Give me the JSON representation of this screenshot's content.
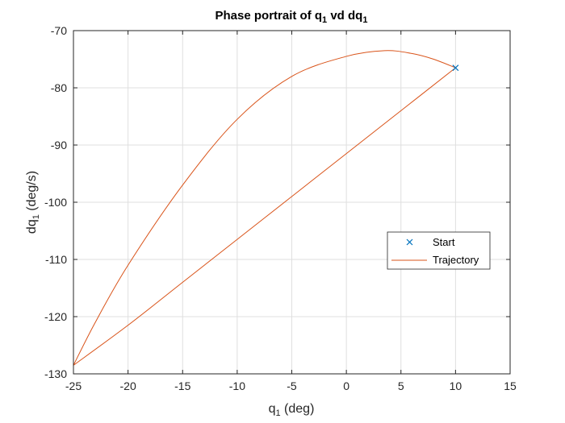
{
  "chart_data": {
    "type": "line",
    "title": {
      "main": "Phase portrait of q",
      "sub1": "1",
      "mid": " vd dq",
      "sub2": "1"
    },
    "xlabel": {
      "main": "q",
      "sub": "1",
      "rest": " (deg)"
    },
    "ylabel": {
      "main": "dq",
      "sub": "1",
      "rest": " (deg/s)"
    },
    "xlim": [
      -25,
      15
    ],
    "ylim": [
      -130,
      -70
    ],
    "xticks": [
      "-25",
      "-20",
      "-15",
      "-10",
      "-5",
      "0",
      "5",
      "10",
      "15"
    ],
    "yticks": [
      "-70",
      "-80",
      "-90",
      "-100",
      "-110",
      "-120",
      "-130"
    ],
    "grid": true,
    "legend_position": "right",
    "series": [
      {
        "name": "Start",
        "marker": "x",
        "color": "#0072BD",
        "points": [
          [
            10,
            -76.5
          ]
        ]
      },
      {
        "name": "Trajectory",
        "color": "#D95319",
        "points": [
          [
            10,
            -76.5
          ],
          [
            8,
            -75.0
          ],
          [
            6,
            -74.0
          ],
          [
            3.5,
            -73.5
          ],
          [
            0,
            -74.5
          ],
          [
            -5,
            -78.0
          ],
          [
            -10,
            -85.5
          ],
          [
            -15,
            -97.0
          ],
          [
            -20,
            -111.0
          ],
          [
            -23,
            -121.0
          ],
          [
            -25,
            -128.5
          ],
          [
            -20,
            -121.5
          ],
          [
            -15,
            -114.0
          ],
          [
            -10,
            -106.5
          ],
          [
            -5,
            -99.0
          ],
          [
            0,
            -91.5
          ],
          [
            5,
            -84.0
          ],
          [
            10,
            -76.5
          ]
        ]
      }
    ]
  }
}
